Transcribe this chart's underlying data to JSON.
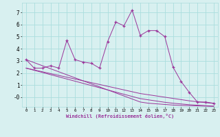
{
  "x": [
    0,
    1,
    2,
    3,
    4,
    5,
    6,
    7,
    8,
    9,
    10,
    11,
    12,
    13,
    14,
    15,
    16,
    17,
    18,
    19,
    20,
    21,
    22,
    23
  ],
  "windchill": [
    3.1,
    2.4,
    2.4,
    2.6,
    2.4,
    4.7,
    3.1,
    2.9,
    2.8,
    2.4,
    4.6,
    6.2,
    5.9,
    7.2,
    5.1,
    5.5,
    5.5,
    5.0,
    2.5,
    1.3,
    0.4,
    -0.4,
    -0.4,
    -0.5
  ],
  "trend1": [
    3.1,
    2.85,
    2.6,
    2.35,
    2.1,
    1.85,
    1.6,
    1.35,
    1.1,
    0.85,
    0.6,
    0.35,
    0.1,
    -0.15,
    -0.4,
    -0.5,
    -0.55,
    -0.6,
    -0.65,
    -0.68,
    -0.7,
    -0.72,
    -0.74,
    -0.76
  ],
  "trend2": [
    2.4,
    2.25,
    2.1,
    1.95,
    1.8,
    1.65,
    1.5,
    1.35,
    1.2,
    1.05,
    0.9,
    0.75,
    0.6,
    0.45,
    0.3,
    0.2,
    0.1,
    0.0,
    -0.1,
    -0.2,
    -0.3,
    -0.38,
    -0.45,
    -0.52
  ],
  "trend3": [
    2.4,
    2.22,
    2.04,
    1.86,
    1.68,
    1.5,
    1.32,
    1.14,
    0.96,
    0.78,
    0.6,
    0.42,
    0.24,
    0.06,
    -0.12,
    -0.22,
    -0.32,
    -0.42,
    -0.5,
    -0.56,
    -0.62,
    -0.66,
    -0.7,
    -0.74
  ],
  "color": "#993399",
  "bg_color": "#d8f0f0",
  "grid_color": "#aadddd",
  "xlabel": "Windchill (Refroidissement éolien,°C)",
  "ylim": [
    -0.8,
    7.8
  ],
  "xlim": [
    -0.5,
    23.5
  ],
  "yticks": [
    7,
    6,
    5,
    4,
    3,
    2,
    1,
    0
  ],
  "ytick_labels": [
    "7",
    "6",
    "5",
    "4",
    "3",
    "2",
    "1",
    "-0"
  ]
}
